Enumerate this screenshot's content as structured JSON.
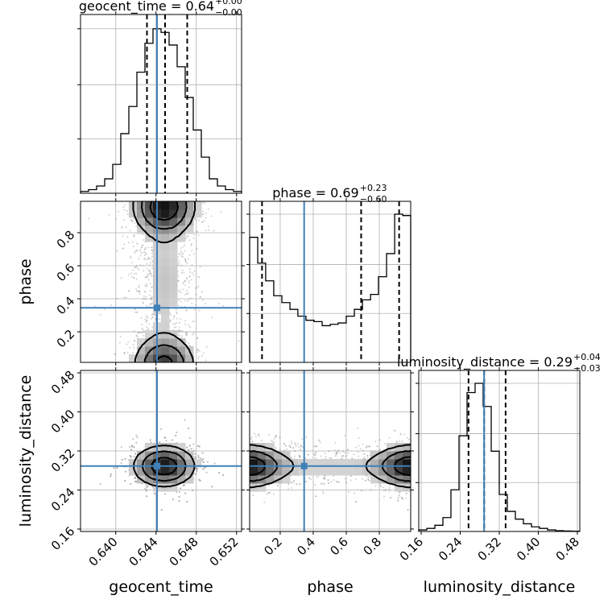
{
  "chart_data": {
    "type": "corner",
    "parameters": [
      "geocent_time",
      "phase",
      "luminosity_distance"
    ],
    "titles": [
      {
        "param": "geocent_time",
        "text": "geocent_time = 0.64",
        "sup": "+0.00",
        "sub": "−0.00"
      },
      {
        "param": "phase",
        "text": "phase = 0.69",
        "sup": "+0.23",
        "sub": "−0.60"
      },
      {
        "param": "luminosity_distance",
        "text": "luminosity_distance = 0.29",
        "sup": "+0.04",
        "sub": "−0.03"
      }
    ],
    "truths": {
      "geocent_time": 0.6441,
      "phase": 0.345,
      "luminosity_distance": 0.289
    },
    "ranges": {
      "geocent_time": [
        0.6365,
        0.6525
      ],
      "phase": [
        0.015,
        0.99
      ],
      "luminosity_distance": [
        0.155,
        0.485
      ]
    },
    "quantiles": {
      "geocent_time": [
        0.6431,
        0.6449,
        0.6471
      ],
      "phase": [
        0.09,
        0.69,
        0.92
      ],
      "luminosity_distance": [
        0.257,
        0.289,
        0.333
      ]
    },
    "ticks": {
      "geocent_time": {
        "values": [
          0.64,
          0.644,
          0.648,
          0.652
        ],
        "labels": [
          "0.640",
          "0.644",
          "0.648",
          "0.652"
        ]
      },
      "phase_x": {
        "values": [
          0.2,
          0.4,
          0.6,
          0.8
        ],
        "labels": [
          "0.2",
          "0.4",
          "0.6",
          "0.8"
        ]
      },
      "phase_y": {
        "values": [
          0.2,
          0.4,
          0.6,
          0.8
        ],
        "labels": [
          "0.2",
          "0.4",
          "0.6",
          "0.8"
        ]
      },
      "luminosity_distance": {
        "values": [
          0.16,
          0.24,
          0.32,
          0.4,
          0.48
        ],
        "labels": [
          "0.16",
          "0.24",
          "0.32",
          "0.40",
          "0.48"
        ]
      }
    },
    "axis_labels": {
      "x": [
        "geocent_time",
        "phase",
        "luminosity_distance"
      ],
      "y": [
        "phase",
        "luminosity_distance"
      ]
    },
    "hist_geocent_time": {
      "edges": [
        0.6365,
        0.6373,
        0.6381,
        0.6389,
        0.6397,
        0.6405,
        0.6413,
        0.6421,
        0.6429,
        0.6437,
        0.6445,
        0.6453,
        0.6461,
        0.6469,
        0.6477,
        0.6485,
        0.6493,
        0.6501,
        0.6509,
        0.6517,
        0.6525
      ],
      "counts": [
        1,
        2,
        4,
        8,
        16,
        33,
        48,
        67,
        83,
        91,
        89,
        82,
        70,
        53,
        35,
        20,
        8,
        4,
        2,
        1
      ]
    },
    "hist_phase": {
      "edges": [
        0.015,
        0.064,
        0.112,
        0.161,
        0.21,
        0.259,
        0.307,
        0.356,
        0.405,
        0.454,
        0.503,
        0.551,
        0.6,
        0.649,
        0.698,
        0.747,
        0.795,
        0.844,
        0.893,
        0.942,
        0.99
      ],
      "counts": [
        92,
        73,
        60,
        49,
        44,
        39,
        34,
        31,
        30,
        27,
        28,
        29,
        34,
        39,
        46,
        50,
        63,
        80,
        109,
        108
      ]
    },
    "hist_luminosity_distance": {
      "edges": [
        0.155,
        0.1715,
        0.188,
        0.2045,
        0.221,
        0.2375,
        0.254,
        0.2705,
        0.287,
        0.3035,
        0.32,
        0.3365,
        0.353,
        0.3695,
        0.386,
        0.4025,
        0.419,
        0.4355,
        0.452,
        0.4685,
        0.485
      ],
      "counts": [
        1,
        2,
        4,
        9,
        27,
        62,
        90,
        96,
        81,
        52,
        24,
        13,
        8,
        5,
        3,
        2,
        1,
        0.5,
        0.3,
        0.2
      ]
    }
  }
}
